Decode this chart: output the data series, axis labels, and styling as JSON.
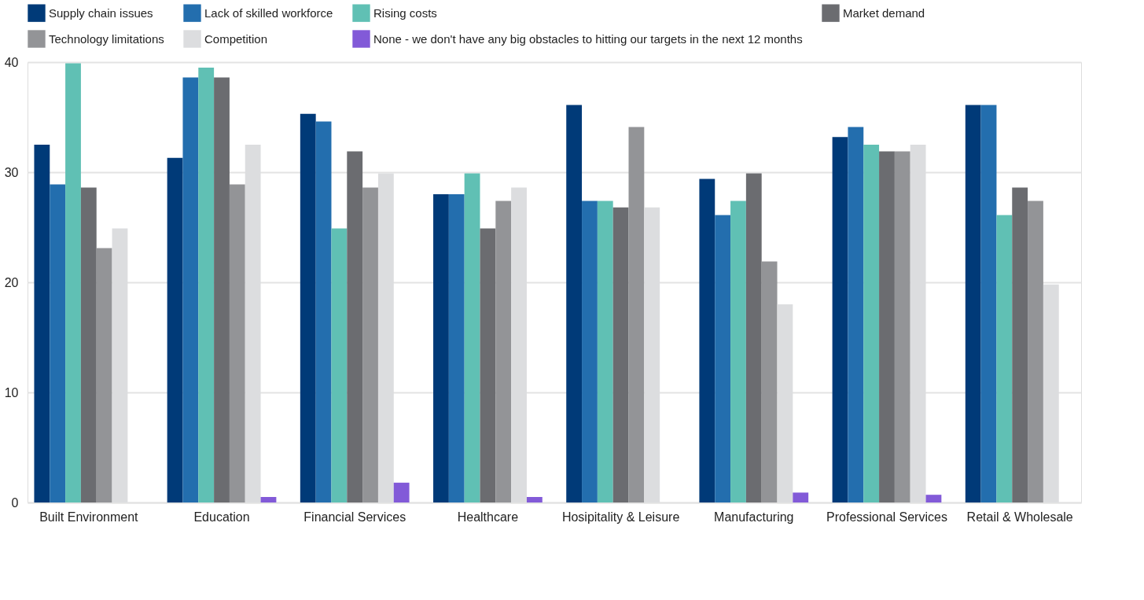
{
  "chart_data": {
    "type": "bar",
    "categories": [
      "Built Environment",
      "Education",
      "Financial Services",
      "Healthcare",
      "Hosipitality & Leisure",
      "Manufacturing",
      "Professional Services",
      "Retail & Wholesale"
    ],
    "series": [
      {
        "name": "Supply chain issues",
        "color": "#003a78",
        "values": [
          32.5,
          31.3,
          35.3,
          28.0,
          36.1,
          29.4,
          33.2,
          36.1
        ]
      },
      {
        "name": "Lack of skilled workforce",
        "color": "#236eae",
        "values": [
          28.9,
          38.6,
          34.6,
          28.0,
          27.4,
          26.1,
          34.1,
          36.1
        ]
      },
      {
        "name": "Rising costs",
        "color": "#60c0b4",
        "values": [
          39.9,
          39.5,
          24.9,
          29.9,
          27.4,
          27.4,
          32.5,
          26.1
        ]
      },
      {
        "name": "Market demand",
        "color": "#6b6c70",
        "values": [
          28.6,
          38.6,
          31.9,
          24.9,
          26.8,
          29.9,
          31.9,
          28.6
        ]
      },
      {
        "name": "Technology limitations",
        "color": "#939497",
        "values": [
          23.1,
          28.9,
          28.6,
          27.4,
          34.1,
          21.9,
          31.9,
          27.4
        ]
      },
      {
        "name": "Competition",
        "color": "#dcdddf",
        "values": [
          24.9,
          32.5,
          29.9,
          28.6,
          26.8,
          18.0,
          32.5,
          19.8
        ]
      },
      {
        "name": "None - we don't have any big obstacles to hitting our targets in the next 12 months",
        "color": "#825ad8",
        "values": [
          0,
          0.5,
          1.8,
          0.5,
          0,
          0.9,
          0.7,
          0
        ]
      }
    ],
    "ylim": [
      0,
      40
    ],
    "yticks": [
      0,
      10,
      20,
      30,
      40
    ],
    "grid": "y",
    "legend": "top"
  }
}
